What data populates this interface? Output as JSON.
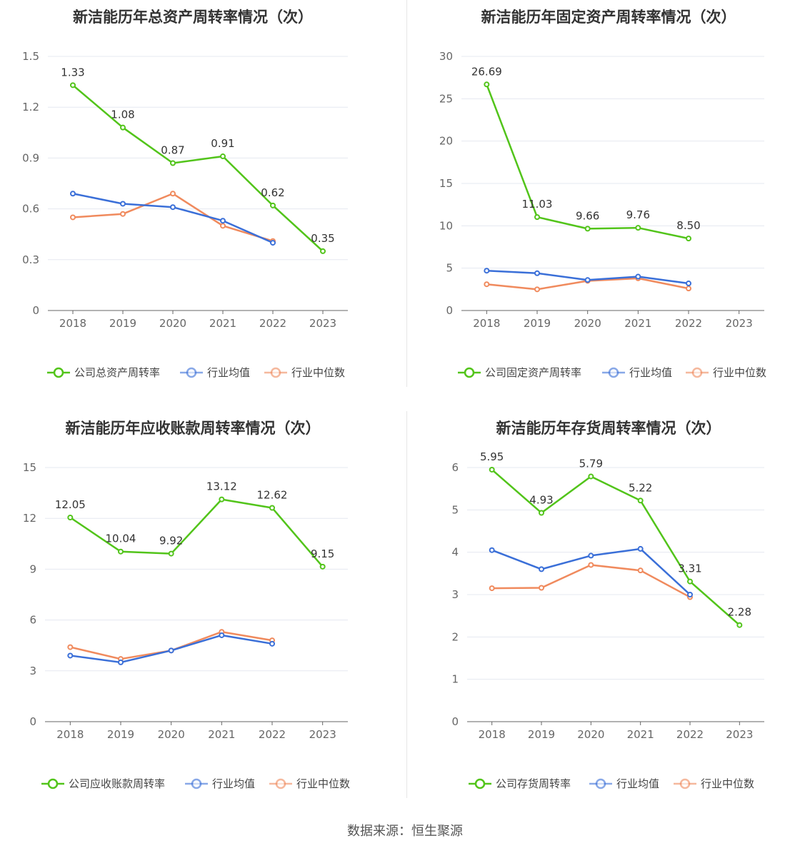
{
  "footer": "数据来源：恒生聚源",
  "colors": {
    "company": "#52c41a",
    "avg": "#3a6fd8",
    "median": "#f08a5d",
    "grid": "#e5e8f0",
    "axis": "#666666"
  },
  "chart_data": [
    {
      "type": "line",
      "title": "新洁能历年总资产周转率情况（次）",
      "categories": [
        "2018",
        "2019",
        "2020",
        "2021",
        "2022",
        "2023"
      ],
      "ylim": [
        0,
        1.5
      ],
      "yticks": [
        "0",
        "0.3",
        "0.6",
        "0.9",
        "1.2",
        "1.5"
      ],
      "ytick_values": [
        0,
        0.3,
        0.6,
        0.9,
        1.2,
        1.5
      ],
      "legend": [
        "公司总资产周转率",
        "行业均值",
        "行业中位数"
      ],
      "series": [
        {
          "name": "公司总资产周转率",
          "values": [
            1.33,
            1.08,
            0.87,
            0.91,
            0.62,
            0.35
          ],
          "labels": [
            "1.33",
            "1.08",
            "0.87",
            "0.91",
            "0.62",
            "0.35"
          ]
        },
        {
          "name": "行业均值",
          "values": [
            0.69,
            0.63,
            0.61,
            0.53,
            0.4,
            null
          ]
        },
        {
          "name": "行业中位数",
          "values": [
            0.55,
            0.57,
            0.69,
            0.5,
            0.41,
            null
          ]
        }
      ]
    },
    {
      "type": "line",
      "title": "新洁能历年固定资产周转率情况（次）",
      "categories": [
        "2018",
        "2019",
        "2020",
        "2021",
        "2022",
        "2023"
      ],
      "ylim": [
        0,
        30
      ],
      "yticks": [
        "0",
        "5",
        "10",
        "15",
        "20",
        "25",
        "30"
      ],
      "ytick_values": [
        0,
        5,
        10,
        15,
        20,
        25,
        30
      ],
      "legend": [
        "公司固定资产周转率",
        "行业均值",
        "行业中位数"
      ],
      "series": [
        {
          "name": "公司固定资产周转率",
          "values": [
            26.69,
            11.03,
            9.66,
            9.76,
            8.5,
            null
          ],
          "labels": [
            "26.69",
            "11.03",
            "9.66",
            "9.76",
            "8.50",
            null
          ]
        },
        {
          "name": "行业均值",
          "values": [
            4.7,
            4.4,
            3.6,
            4.0,
            3.2,
            null
          ]
        },
        {
          "name": "行业中位数",
          "values": [
            3.1,
            2.5,
            3.5,
            3.8,
            2.6,
            null
          ]
        }
      ]
    },
    {
      "type": "line",
      "title": "新洁能历年应收账款周转率情况（次）",
      "categories": [
        "2018",
        "2019",
        "2020",
        "2021",
        "2022",
        "2023"
      ],
      "ylim": [
        0,
        15
      ],
      "yticks": [
        "0",
        "3",
        "6",
        "9",
        "12",
        "15"
      ],
      "ytick_values": [
        0,
        3,
        6,
        9,
        12,
        15
      ],
      "legend": [
        "公司应收账款周转率",
        "行业均值",
        "行业中位数"
      ],
      "series": [
        {
          "name": "公司应收账款周转率",
          "values": [
            12.05,
            10.04,
            9.92,
            13.12,
            12.62,
            9.15
          ],
          "labels": [
            "12.05",
            "10.04",
            "9.92",
            "13.12",
            "12.62",
            "9.15"
          ]
        },
        {
          "name": "行业均值",
          "values": [
            3.9,
            3.5,
            4.2,
            5.1,
            4.6,
            null
          ]
        },
        {
          "name": "行业中位数",
          "values": [
            4.4,
            3.7,
            4.2,
            5.3,
            4.8,
            null
          ]
        }
      ]
    },
    {
      "type": "line",
      "title": "新洁能历年存货周转率情况（次）",
      "categories": [
        "2018",
        "2019",
        "2020",
        "2021",
        "2022",
        "2023"
      ],
      "ylim": [
        0,
        6
      ],
      "yticks": [
        "0",
        "1",
        "2",
        "3",
        "4",
        "5",
        "6"
      ],
      "ytick_values": [
        0,
        1,
        2,
        3,
        4,
        5,
        6
      ],
      "legend": [
        "公司存货周转率",
        "行业均值",
        "行业中位数"
      ],
      "series": [
        {
          "name": "公司存货周转率",
          "values": [
            5.95,
            4.93,
            5.79,
            5.22,
            3.31,
            2.28
          ],
          "labels": [
            "5.95",
            "4.93",
            "5.79",
            "5.22",
            "3.31",
            "2.28"
          ]
        },
        {
          "name": "行业均值",
          "values": [
            4.05,
            3.6,
            3.92,
            4.08,
            3.0,
            null
          ]
        },
        {
          "name": "行业中位数",
          "values": [
            3.15,
            3.16,
            3.7,
            3.57,
            2.94,
            null
          ]
        }
      ]
    }
  ]
}
